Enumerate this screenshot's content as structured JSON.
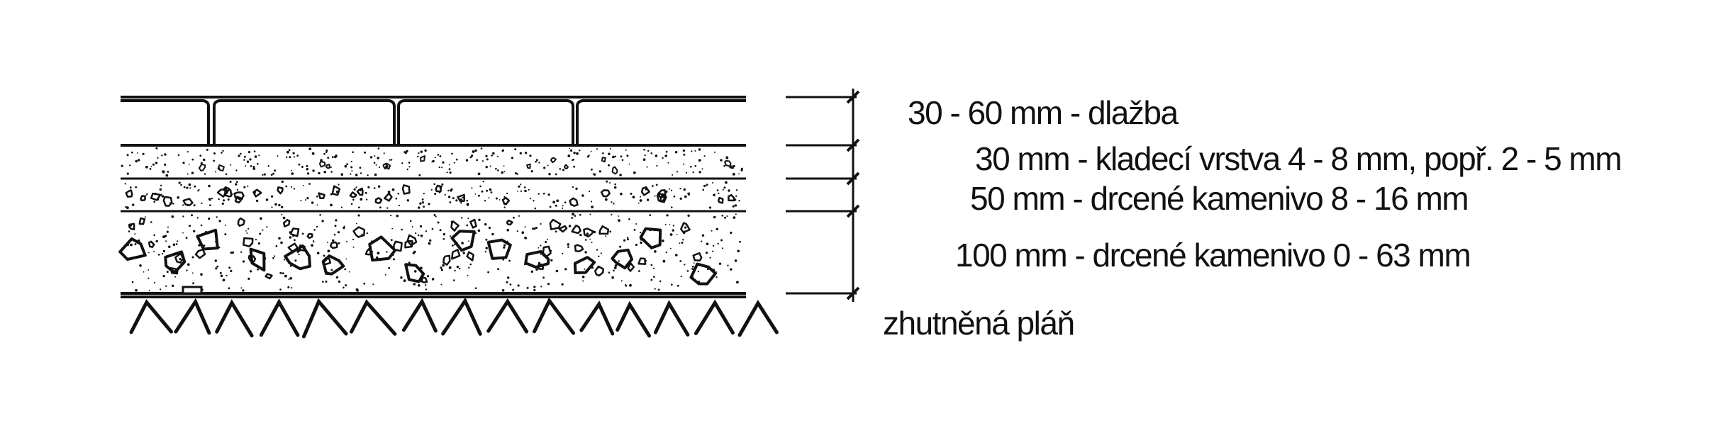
{
  "diagram": {
    "layers": [
      {
        "id": "paving",
        "label": "30 - 60 mm - dlažba"
      },
      {
        "id": "bedding",
        "label": "30 mm - kladecí vrstva 4 - 8 mm, popř. 2 - 5 mm"
      },
      {
        "id": "base",
        "label": "50 mm - drcené kamenivo 8 - 16 mm"
      },
      {
        "id": "subbase",
        "label": "100 mm - drcené kamenivo 0 - 63 mm"
      },
      {
        "id": "subgrade",
        "label": "zhutněná pláň"
      }
    ],
    "colors": {
      "ink": "#111111",
      "background": "#ffffff"
    }
  }
}
